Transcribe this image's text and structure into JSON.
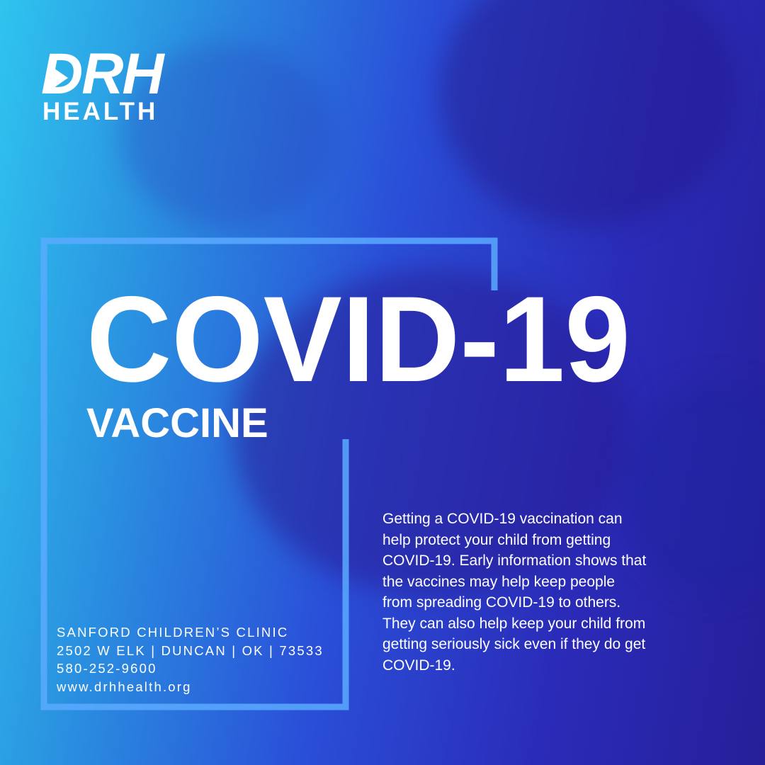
{
  "logo": {
    "top": "DRH",
    "bottom": "HEALTH"
  },
  "title": "COVID-19",
  "subtitle": "VACCINE",
  "contact": [
    "SANFORD CHILDREN’S CLINIC",
    "2502 W ELK | DUNCAN | OK | 73533",
    "580-252-9600",
    "www.drhhealth.org"
  ],
  "body": [
    "Getting a COVID-19 vaccination can",
    "help protect your child from getting",
    "COVID-19. Early information shows that",
    "the vaccines may help keep people",
    "from spreading COVID-19 to others.",
    "They can also help keep your child from",
    "getting seriously sick even if they do get",
    "COVID-19."
  ]
}
